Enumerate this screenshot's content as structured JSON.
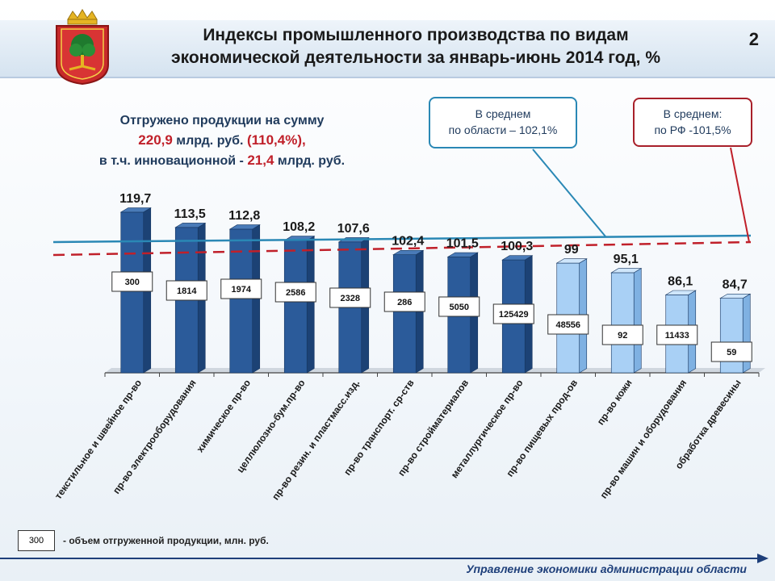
{
  "page": {
    "title_line1": "Индексы промышленного производства по видам",
    "title_line2": "экономической деятельности за январь-июнь 2014 год, %",
    "page_number": "2"
  },
  "summary": {
    "line1": "Отгружено продукции на сумму",
    "line2_value": "220,9",
    "line2_unit": " млрд. руб. ",
    "line2_pct": "(110,4%),",
    "line3_text": "в т.ч. инновационной - ",
    "line3_value": "21,4",
    "line3_unit": " млрд. руб."
  },
  "callouts": {
    "region_line1": "В среднем",
    "region_line2": "по области – 102,1%",
    "rf_line1": "В среднем:",
    "rf_line2": "по РФ -101,5%"
  },
  "legend": {
    "sample": "300",
    "text": "- объем отгруженной продукции, млн. руб."
  },
  "footer": {
    "text": "Управление экономики администрации области"
  },
  "colors": {
    "bar_dark": "#2b5b9a",
    "bar_light": "#a9d0f5",
    "region_line": "#2a88b5",
    "rf_line": "#c0202a",
    "footer_line": "#1e3f7a"
  },
  "chart_data": {
    "type": "bar",
    "categories": [
      "текстильное и швейное пр-во",
      "пр-во электрооборудования",
      "химическое пр-во",
      "целлюлозно-бум.пр-во",
      "пр-во резин. и пластмасс.изд.",
      "пр-во транспорт. ср-ств",
      "пр-во стройматериалов",
      "металлургическое пр-во",
      "пр-во пищевых прод-ов",
      "пр-во кожи",
      "пр-во машин и оборудования",
      "обработка древесины"
    ],
    "values": [
      119.7,
      113.5,
      112.8,
      108.2,
      107.6,
      102.4,
      101.5,
      100.3,
      99,
      95.1,
      86.1,
      84.7
    ],
    "value_labels": [
      "119,7",
      "113,5",
      "112,8",
      "108,2",
      "107,6",
      "102,4",
      "101,5",
      "100,3",
      "99",
      "95,1",
      "86,1",
      "84,7"
    ],
    "shipped_volume": [
      "300",
      "1814",
      "1974",
      "2586",
      "2328",
      "286",
      "5050",
      "125429",
      "48556",
      "92",
      "11433",
      "59"
    ],
    "highlight": [
      false,
      false,
      false,
      false,
      false,
      false,
      false,
      false,
      true,
      true,
      true,
      true
    ],
    "reference_lines": [
      {
        "label": "В среднем по области",
        "value": 102.1
      },
      {
        "label": "В среднем по РФ",
        "value": 101.5
      }
    ]
  }
}
